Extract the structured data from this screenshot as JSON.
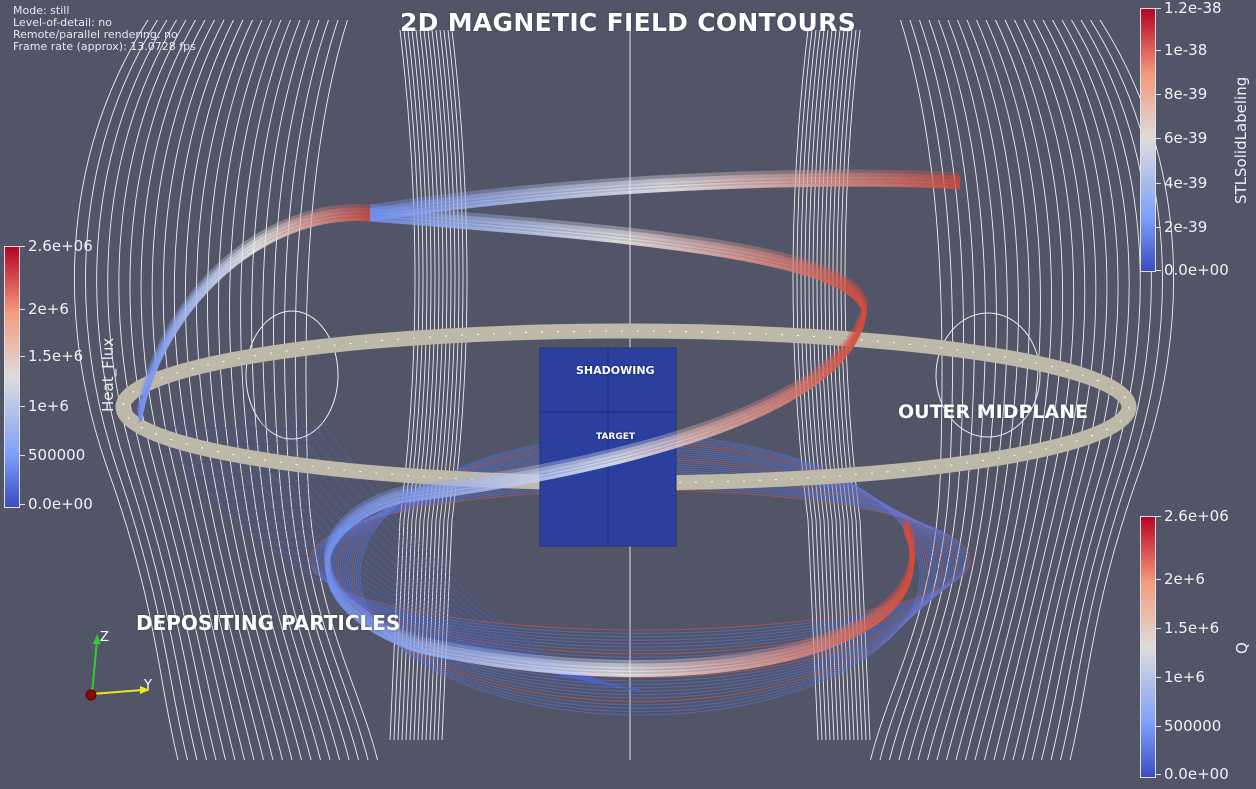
{
  "info": {
    "mode": "Mode: still",
    "lod": "Level-of-detail: no",
    "remote": "Remote/parallel rendering: no",
    "framerate": "Frame rate (approx): 13.0728 fps"
  },
  "annotations": {
    "title": "2D MAGNETIC FIELD CONTOURS",
    "shadowing": "SHADOWING",
    "target": "TARGET",
    "outer_midplane": "OUTER MIDPLANE",
    "depositing": "DEPOSITING PARTICLES"
  },
  "colorbars": {
    "stl": {
      "title": "STLSolidLabeling",
      "ticks": [
        "1.2e-38",
        "1e-38",
        "8e-39",
        "6e-39",
        "4e-39",
        "2e-39",
        "0.0e+00"
      ]
    },
    "heat": {
      "title": "Heat_Flux",
      "ticks": [
        "2.6e+06",
        "2e+6",
        "1.5e+6",
        "1e+6",
        "500000",
        "0.0e+00"
      ]
    },
    "q": {
      "title": "Q",
      "ticks": [
        "2.6e+06",
        "2e+6",
        "1.5e+6",
        "1e+6",
        "500000",
        "0.0e+00"
      ]
    }
  },
  "axes": {
    "z": "Z",
    "y": "Y"
  },
  "colors": {
    "background": "#525468",
    "cmap_low": "#3b4cc0",
    "cmap_mid": "#dddcdc",
    "cmap_high": "#b40426",
    "ring": "#bdb8a8",
    "target_box": "#2a3f9e",
    "field_lines": "#ffffff"
  }
}
